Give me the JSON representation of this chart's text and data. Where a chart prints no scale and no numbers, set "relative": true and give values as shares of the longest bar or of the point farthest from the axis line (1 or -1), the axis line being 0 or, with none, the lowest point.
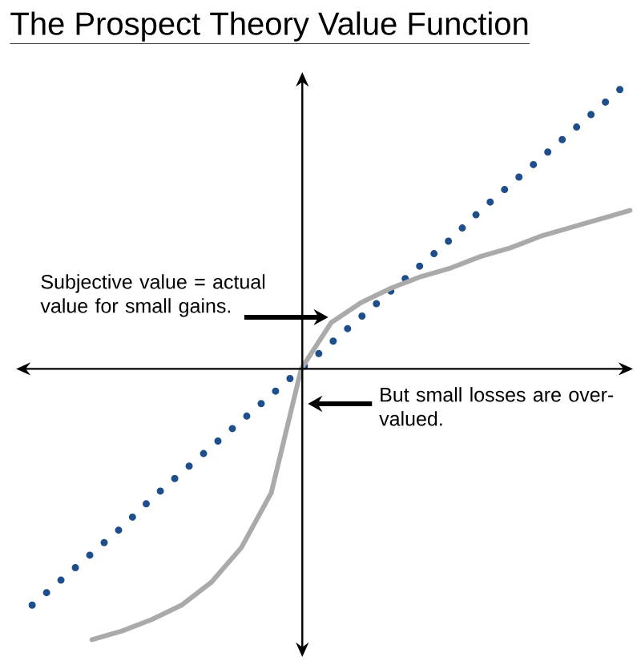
{
  "chart_data": {
    "type": "line",
    "title": "The Prospect Theory Value Function",
    "relative": true,
    "categories": [
      null,
      null,
      null,
      null,
      null,
      null,
      null,
      null,
      null,
      null,
      null,
      null,
      null,
      null,
      null,
      null,
      null,
      null,
      null,
      null,
      null
    ],
    "series": [
      {
        "color": "#1f4e8c",
        "line_style": "dotted",
        "values": [
          -0.82,
          -0.73,
          -0.64,
          -0.55,
          -0.45,
          -0.36,
          -0.27,
          -0.18,
          -0.09,
          0,
          0.09,
          0.18,
          0.27,
          0.36,
          0.45,
          0.55,
          0.64,
          0.73,
          0.82,
          0.91,
          1.0
        ]
      },
      {
        "color": "#aaaaaa",
        "line_style": "solid",
        "values": [
          null,
          null,
          -0.94,
          -0.91,
          -0.87,
          -0.82,
          -0.74,
          -0.62,
          -0.43,
          0,
          0.16,
          0.23,
          0.28,
          0.32,
          0.35,
          0.39,
          0.42,
          0.46,
          0.49,
          0.52,
          0.55
        ]
      }
    ],
    "annotations": [
      "Subjective value = actual value for small gains.",
      "But small losses are over-valued."
    ]
  }
}
